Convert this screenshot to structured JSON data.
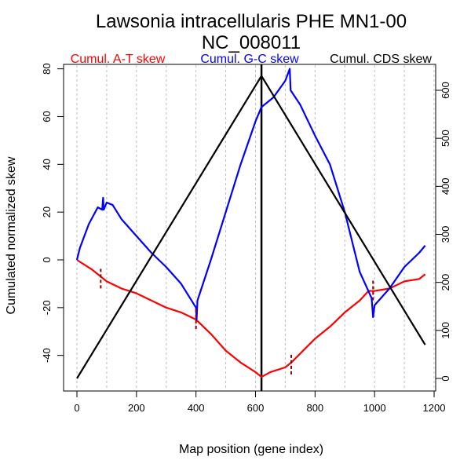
{
  "chart_data": {
    "type": "line",
    "title": "Lawsonia intracellularis PHE MN1-00",
    "subtitle": "NC_008011",
    "xlabel": "Map position (gene index)",
    "ylabel": "Cumulated normalized skew",
    "xlim": [
      0,
      1200
    ],
    "ylim_left": [
      -50,
      80
    ],
    "ylim_right": [
      0,
      630
    ],
    "x_ticks": [
      "0",
      "200",
      "400",
      "600",
      "800",
      "1000",
      "1200"
    ],
    "x_tick_values": [
      0,
      200,
      400,
      600,
      800,
      1000,
      1200
    ],
    "y_left_ticks": [
      "-40",
      "-20",
      "0",
      "20",
      "40",
      "60",
      "80"
    ],
    "y_left_tick_values": [
      -40,
      -20,
      0,
      20,
      40,
      60,
      80
    ],
    "y_right_ticks": [
      "0",
      "100",
      "200",
      "300",
      "400",
      "500",
      "600"
    ],
    "y_right_tick_values": [
      0,
      100,
      200,
      300,
      400,
      500,
      600
    ],
    "grid": "vertical dashed every 100",
    "vline_x": 620,
    "legend": [
      {
        "label": "Cumul. A-T skew",
        "color": "#ff0000"
      },
      {
        "label": "Cumul. G-C skew",
        "color": "#0000ff"
      },
      {
        "label": "Cumul. CDS skew",
        "color": "#000000"
      }
    ],
    "series": [
      {
        "name": "Cumul. A-T skew",
        "color": "#ff0000",
        "axis": "left",
        "points": [
          [
            0,
            0
          ],
          [
            50,
            -4
          ],
          [
            80,
            -7
          ],
          [
            100,
            -9
          ],
          [
            150,
            -12
          ],
          [
            200,
            -14
          ],
          [
            250,
            -17
          ],
          [
            300,
            -20
          ],
          [
            350,
            -22
          ],
          [
            400,
            -25
          ],
          [
            450,
            -31
          ],
          [
            500,
            -38
          ],
          [
            550,
            -43
          ],
          [
            600,
            -47
          ],
          [
            620,
            -49
          ],
          [
            650,
            -47
          ],
          [
            700,
            -45
          ],
          [
            720,
            -43
          ],
          [
            760,
            -38
          ],
          [
            800,
            -33
          ],
          [
            850,
            -28
          ],
          [
            900,
            -22
          ],
          [
            950,
            -17
          ],
          [
            980,
            -13
          ],
          [
            1000,
            -13
          ],
          [
            1050,
            -12
          ],
          [
            1100,
            -9
          ],
          [
            1150,
            -8
          ],
          [
            1170,
            -6
          ]
        ]
      },
      {
        "name": "Cumul. G-C skew",
        "color": "#0000ff",
        "axis": "left",
        "points": [
          [
            0,
            0
          ],
          [
            10,
            5
          ],
          [
            40,
            15
          ],
          [
            70,
            22
          ],
          [
            85,
            21
          ],
          [
            88,
            26
          ],
          [
            90,
            21
          ],
          [
            100,
            24
          ],
          [
            120,
            23
          ],
          [
            150,
            17
          ],
          [
            200,
            10
          ],
          [
            250,
            3
          ],
          [
            300,
            -3
          ],
          [
            350,
            -10
          ],
          [
            400,
            -20
          ],
          [
            402,
            -25
          ],
          [
            405,
            -17
          ],
          [
            450,
            0
          ],
          [
            500,
            20
          ],
          [
            550,
            40
          ],
          [
            600,
            58
          ],
          [
            620,
            64
          ],
          [
            660,
            68
          ],
          [
            700,
            75
          ],
          [
            715,
            80
          ],
          [
            718,
            71
          ],
          [
            750,
            65
          ],
          [
            800,
            52
          ],
          [
            850,
            40
          ],
          [
            900,
            20
          ],
          [
            950,
            -5
          ],
          [
            990,
            -16
          ],
          [
            995,
            -24
          ],
          [
            1000,
            -19
          ],
          [
            1050,
            -12
          ],
          [
            1100,
            -3
          ],
          [
            1150,
            3
          ],
          [
            1170,
            6
          ]
        ]
      },
      {
        "name": "Cumul. CDS skew",
        "color": "#000000",
        "axis": "right",
        "points": [
          [
            0,
            0
          ],
          [
            620,
            630
          ],
          [
            1170,
            70
          ]
        ]
      }
    ],
    "markers": [
      {
        "x": 80,
        "y": -8,
        "color": "#8b0000"
      },
      {
        "x": 400,
        "y": -25,
        "color": "#8b0000"
      },
      {
        "x": 720,
        "y": -44,
        "color": "#8b0000"
      },
      {
        "x": 995,
        "y": -13,
        "color": "#8b0000"
      }
    ]
  }
}
